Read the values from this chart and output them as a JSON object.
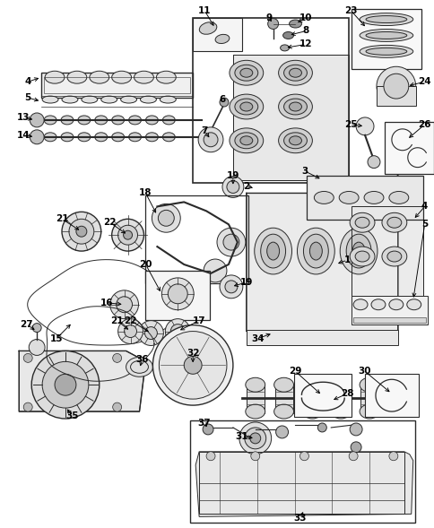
{
  "bg_color": "#ffffff",
  "line_color": "#2a2a2a",
  "fig_width": 4.85,
  "fig_height": 5.89,
  "dpi": 100,
  "border_color": "#444444",
  "gray_fill": "#e8e8e8",
  "dark_gray": "#555555",
  "med_gray": "#999999",
  "light_gray": "#dddddd"
}
